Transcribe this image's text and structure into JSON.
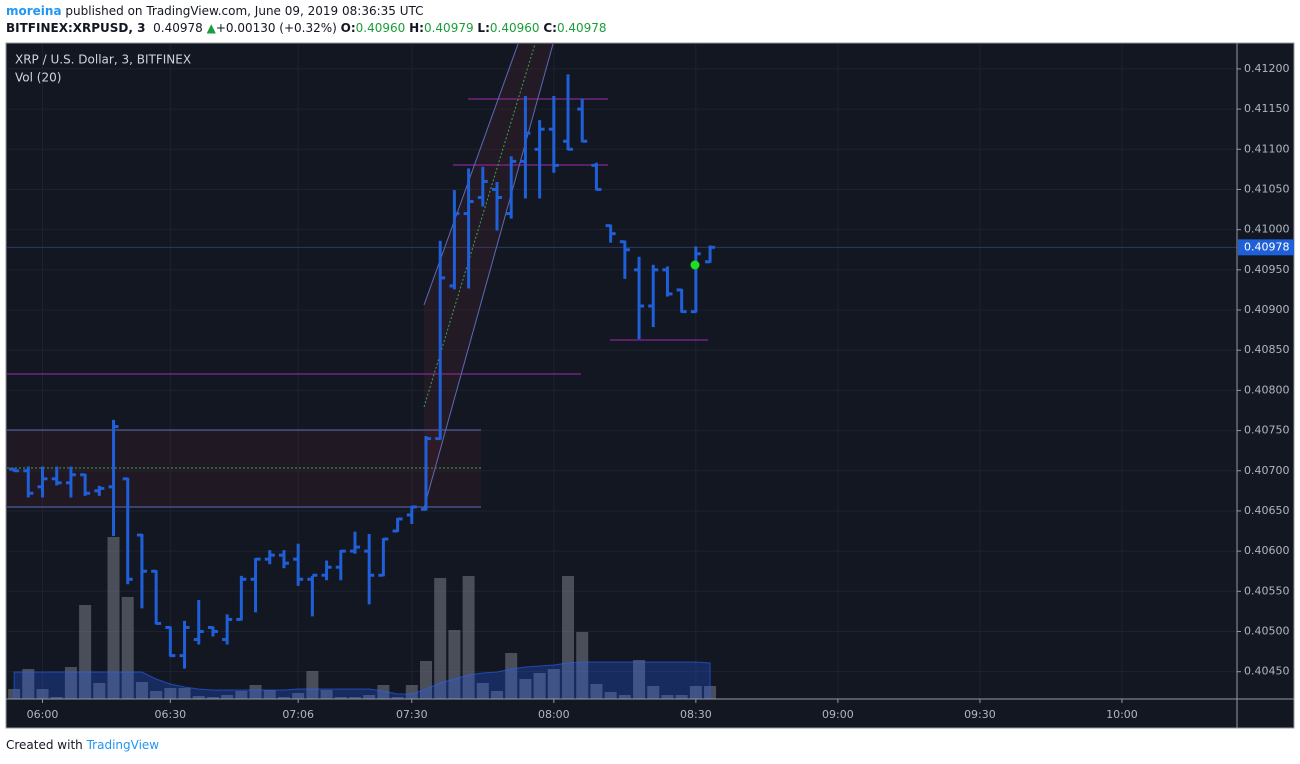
{
  "header": {
    "user": "moreina",
    "published": "published on TradingView.com, June 09, 2019 08:36:35 UTC",
    "symbol": "BITFINEX:XRPUSD, 3",
    "last": "0.40978",
    "arrow": "▲",
    "change": "+0.00130 (+0.32%)",
    "o_label": "O:",
    "open": "0.40960",
    "h_label": "H:",
    "high": "0.40979",
    "l_label": "L:",
    "low": "0.40960",
    "c_label": "C:",
    "close": "0.40978"
  },
  "footer": {
    "created": "Created with",
    "brand": "TradingView"
  },
  "chart_data": {
    "type": "ohlc",
    "title": "XRP / U.S. Dollar, 3, BITFINEX",
    "subtitle": "Vol (20)",
    "color": "#1f5fd8",
    "open": [
      0.40702,
      0.407,
      0.4068,
      0.4069,
      0.40685,
      0.40695,
      0.40675,
      0.4068,
      0.4069,
      0.4062,
      0.40575,
      0.40505,
      0.4047,
      0.4049,
      0.40505,
      0.4049,
      0.40515,
      0.40565,
      0.4059,
      0.40595,
      0.4059,
      0.40565,
      0.4057,
      0.4058,
      0.406,
      0.406,
      0.4057,
      0.40625,
      0.40645,
      0.40652,
      0.4074,
      0.4093,
      0.4102,
      0.4104,
      0.4105,
      0.4102,
      0.41085,
      0.411,
      0.41125,
      0.4111,
      0.4115,
      0.4108,
      0.41005,
      0.40985,
      0.4095,
      0.40905,
      0.4095,
      0.40925,
      0.40898,
      0.4096
    ],
    "high": [
      0.40702,
      0.40704,
      0.40704,
      0.40704,
      0.40704,
      0.40695,
      0.4068,
      0.40762,
      0.4069,
      0.4062,
      0.40575,
      0.40505,
      0.40512,
      0.40538,
      0.40505,
      0.4052,
      0.40568,
      0.4059,
      0.406,
      0.406,
      0.40608,
      0.40568,
      0.40587,
      0.406,
      0.40623,
      0.4062,
      0.40615,
      0.4064,
      0.40655,
      0.40742,
      0.40985,
      0.41048,
      0.41075,
      0.41077,
      0.41058,
      0.4109,
      0.41165,
      0.41135,
      0.41165,
      0.41192,
      0.41162,
      0.41082,
      0.41005,
      0.40985,
      0.40965,
      0.40955,
      0.40953,
      0.40925,
      0.40978,
      0.40979
    ],
    "low": [
      0.407,
      0.40668,
      0.40668,
      0.40683,
      0.40668,
      0.4067,
      0.4067,
      0.4062,
      0.4056,
      0.4053,
      0.4051,
      0.4047,
      0.40455,
      0.40485,
      0.40495,
      0.40485,
      0.40515,
      0.40525,
      0.40585,
      0.4058,
      0.40558,
      0.4052,
      0.40565,
      0.40565,
      0.40598,
      0.40535,
      0.4057,
      0.40625,
      0.40635,
      0.40652,
      0.4074,
      0.40927,
      0.40928,
      0.4103,
      0.41,
      0.41015,
      0.4104,
      0.4104,
      0.41072,
      0.411,
      0.4111,
      0.4105,
      0.40985,
      0.4094,
      0.40865,
      0.4088,
      0.40918,
      0.40898,
      0.40898,
      0.4096
    ],
    "close": [
      0.407,
      0.40672,
      0.4069,
      0.40685,
      0.40695,
      0.40672,
      0.40678,
      0.40755,
      0.40565,
      0.40575,
      0.4051,
      0.4047,
      0.40505,
      0.405,
      0.405,
      0.40515,
      0.40565,
      0.4059,
      0.40595,
      0.40585,
      0.40565,
      0.4057,
      0.4058,
      0.406,
      0.40605,
      0.4057,
      0.40615,
      0.4064,
      0.40655,
      0.4074,
      0.4094,
      0.4102,
      0.41035,
      0.4106,
      0.4104,
      0.41085,
      0.4112,
      0.41125,
      0.4108,
      0.411,
      0.4111,
      0.4105,
      0.40995,
      0.40975,
      0.40905,
      0.4095,
      0.4092,
      0.40898,
      0.4097,
      0.40978
    ],
    "volume": [
      10,
      30,
      10,
      2,
      32,
      94,
      16,
      162,
      102,
      17,
      8,
      11,
      11,
      3,
      2,
      4,
      8,
      14,
      9,
      2,
      6,
      28,
      9,
      2,
      2,
      4,
      14,
      2,
      14,
      38,
      121,
      69,
      123,
      16,
      8,
      46,
      20,
      26,
      30,
      123,
      67,
      15,
      7,
      4,
      39,
      13,
      4,
      4,
      13,
      13
    ],
    "volume_ma": [
      27,
      27,
      27,
      27,
      27,
      27,
      27,
      27,
      27,
      27,
      20,
      15,
      12,
      10,
      9,
      9,
      9,
      9,
      9,
      9,
      10,
      10,
      10,
      10,
      10,
      10,
      8,
      5,
      5,
      10,
      16,
      20,
      24,
      26,
      27,
      30,
      32,
      33,
      34,
      36,
      37,
      37,
      37,
      37,
      37,
      37,
      37,
      37,
      37,
      36
    ],
    "volume_lim": [
      0,
      250
    ],
    "xlim": [
      -0.5,
      86.1
    ],
    "xticks": [
      {
        "value": 2,
        "label": "06:00"
      },
      {
        "value": 11,
        "label": "06:30"
      },
      {
        "value": 20,
        "label": "07:06"
      },
      {
        "value": 28,
        "label": "07:30"
      },
      {
        "value": 38,
        "label": "08:00"
      },
      {
        "value": 48,
        "label": "08:30"
      },
      {
        "value": 58,
        "label": "09:00"
      },
      {
        "value": 68,
        "label": "09:30"
      },
      {
        "value": 78,
        "label": "10:00"
      }
    ],
    "ylim": [
      0.40416,
      0.41231
    ],
    "yticks": [
      {
        "value": 0.412,
        "label": "0.41200"
      },
      {
        "value": 0.4115,
        "label": "0.41150"
      },
      {
        "value": 0.411,
        "label": "0.41100"
      },
      {
        "value": 0.4105,
        "label": "0.41050"
      },
      {
        "value": 0.41,
        "label": "0.41000"
      },
      {
        "value": 0.4095,
        "label": "0.40950"
      },
      {
        "value": 0.409,
        "label": "0.40900"
      },
      {
        "value": 0.4085,
        "label": "0.40850"
      },
      {
        "value": 0.408,
        "label": "0.40800"
      },
      {
        "value": 0.4075,
        "label": "0.40750"
      },
      {
        "value": 0.407,
        "label": "0.40700"
      },
      {
        "value": 0.4065,
        "label": "0.40650"
      },
      {
        "value": 0.406,
        "label": "0.40600"
      },
      {
        "value": 0.4055,
        "label": "0.40550"
      },
      {
        "value": 0.405,
        "label": "0.40500"
      },
      {
        "value": 0.4045,
        "label": "0.40450"
      }
    ],
    "last_price": {
      "value": 0.40978,
      "label": "0.40978"
    },
    "grid": true
  }
}
